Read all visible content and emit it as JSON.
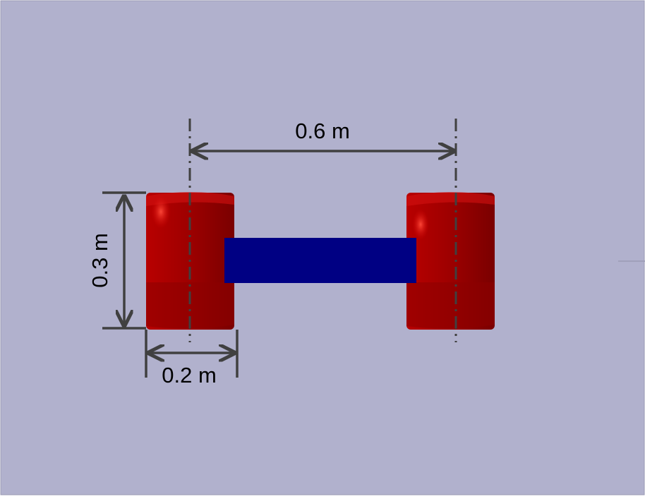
{
  "colors": {
    "background": "#b0b0cc",
    "wheel": "#c00000",
    "wheel_dark": "#8a0000",
    "axle": "#000080",
    "dimension": "#404040"
  },
  "dimensions": {
    "wheel_separation_label": "0.6 m",
    "wheel_diameter_label": "0.3 m",
    "wheel_width_label": "0.2 m"
  }
}
